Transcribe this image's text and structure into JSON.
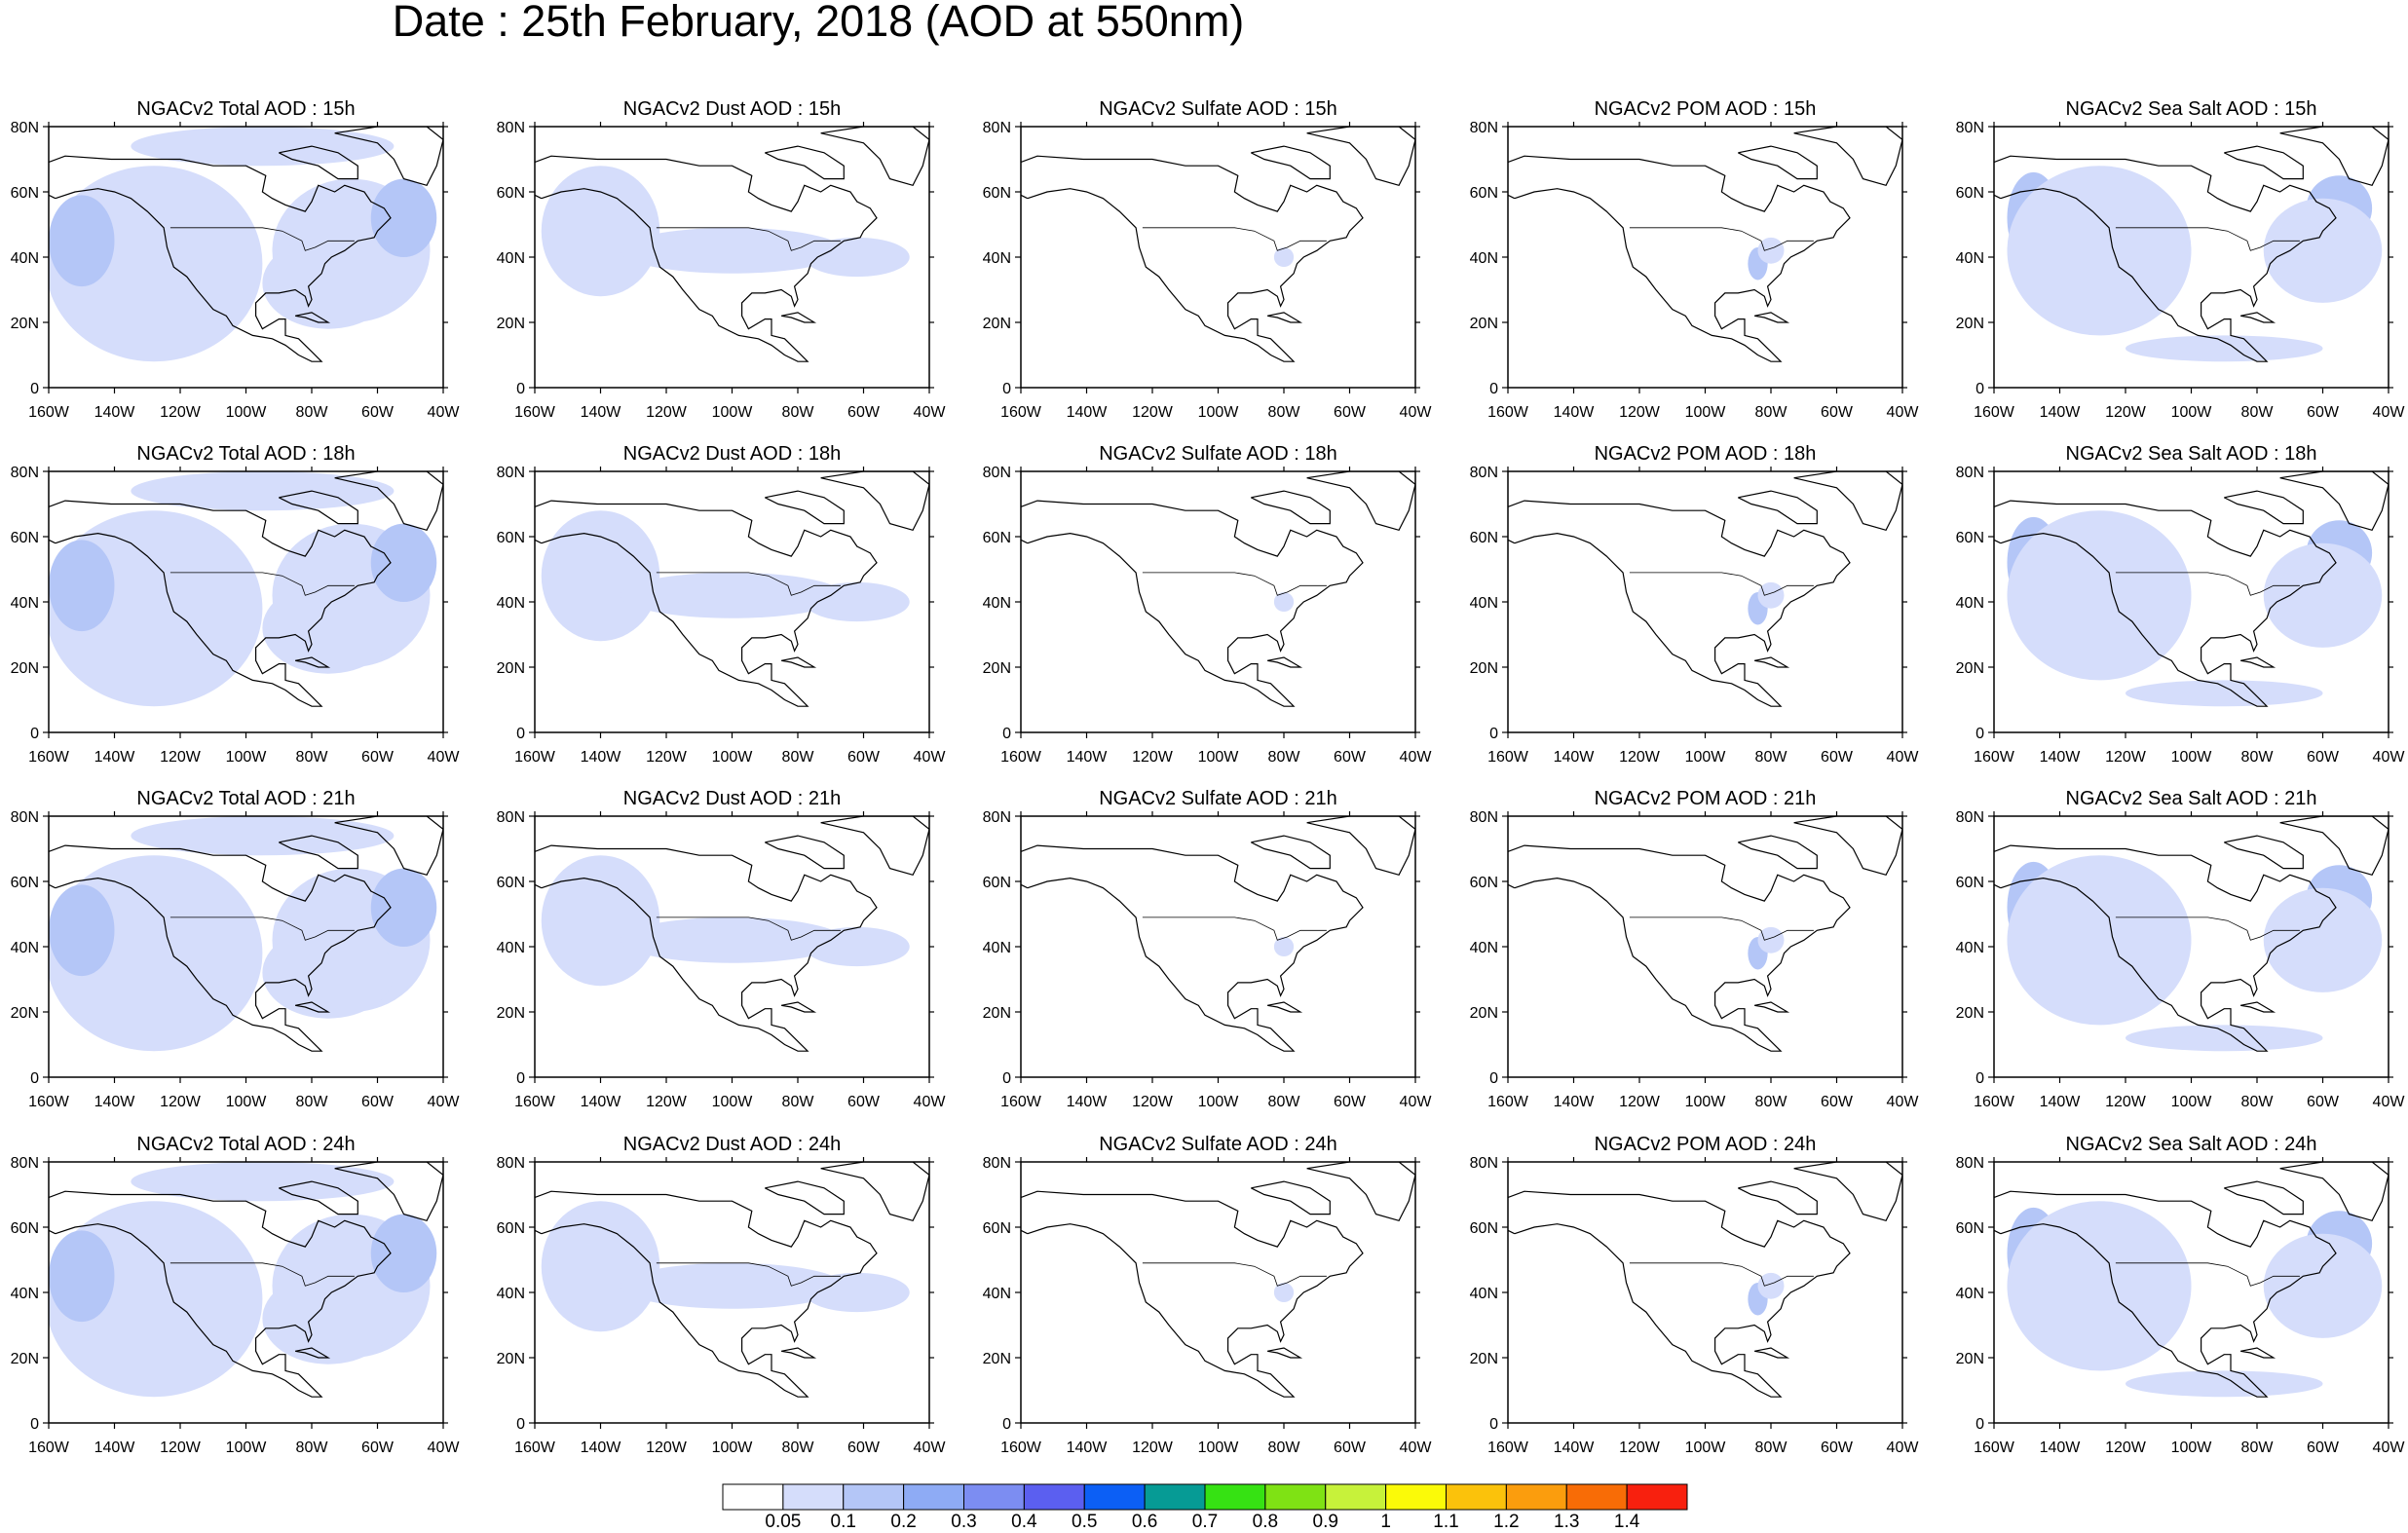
{
  "figure": {
    "title": "Date : 25th February, 2018 (AOD at 550nm)"
  },
  "panels": [
    {
      "title": "NGACv2 Total AOD : 15h",
      "field": "total",
      "hour": "15h"
    },
    {
      "title": "NGACv2 Dust AOD : 15h",
      "field": "dust",
      "hour": "15h"
    },
    {
      "title": "NGACv2 Sulfate AOD : 15h",
      "field": "sulfate",
      "hour": "15h"
    },
    {
      "title": "NGACv2 POM AOD : 15h",
      "field": "pom",
      "hour": "15h"
    },
    {
      "title": "NGACv2 Sea Salt AOD : 15h",
      "field": "seasalt",
      "hour": "15h"
    },
    {
      "title": "NGACv2 Total AOD : 18h",
      "field": "total",
      "hour": "18h"
    },
    {
      "title": "NGACv2 Dust AOD : 18h",
      "field": "dust",
      "hour": "18h"
    },
    {
      "title": "NGACv2 Sulfate AOD : 18h",
      "field": "sulfate",
      "hour": "18h"
    },
    {
      "title": "NGACv2 POM AOD : 18h",
      "field": "pom",
      "hour": "18h"
    },
    {
      "title": "NGACv2 Sea Salt AOD : 18h",
      "field": "seasalt",
      "hour": "18h"
    },
    {
      "title": "NGACv2 Total AOD : 21h",
      "field": "total",
      "hour": "21h"
    },
    {
      "title": "NGACv2 Dust AOD : 21h",
      "field": "dust",
      "hour": "21h"
    },
    {
      "title": "NGACv2 Sulfate AOD : 21h",
      "field": "sulfate",
      "hour": "21h"
    },
    {
      "title": "NGACv2 POM AOD : 21h",
      "field": "pom",
      "hour": "21h"
    },
    {
      "title": "NGACv2 Sea Salt AOD : 21h",
      "field": "seasalt",
      "hour": "21h"
    },
    {
      "title": "NGACv2 Total AOD : 24h",
      "field": "total",
      "hour": "24h"
    },
    {
      "title": "NGACv2 Dust AOD : 24h",
      "field": "dust",
      "hour": "24h"
    },
    {
      "title": "NGACv2 Sulfate AOD : 24h",
      "field": "sulfate",
      "hour": "24h"
    },
    {
      "title": "NGACv2 POM AOD : 24h",
      "field": "pom",
      "hour": "24h"
    },
    {
      "title": "NGACv2 Sea Salt  AOD : 24h",
      "field": "seasalt",
      "hour": "24h"
    }
  ],
  "axes": {
    "lon_ticks": [
      "160W",
      "140W",
      "120W",
      "100W",
      "80W",
      "60W",
      "40W"
    ],
    "lon_values": [
      -160,
      -140,
      -120,
      -100,
      -80,
      -60,
      -40
    ],
    "lat_ticks": [
      "0",
      "20N",
      "40N",
      "60N",
      "80N"
    ],
    "lat_values": [
      0,
      20,
      40,
      60,
      80
    ]
  },
  "colorbar": {
    "labels": [
      "0.05",
      "0.1",
      "0.2",
      "0.3",
      "0.4",
      "0.5",
      "0.6",
      "0.7",
      "0.8",
      "0.9",
      "1",
      "1.1",
      "1.2",
      "1.3",
      "1.4"
    ],
    "colors": [
      "#ffffff",
      "#d5ddfb",
      "#b4c6f7",
      "#8eabf5",
      "#7c8df2",
      "#5b5ff0",
      "#0c5ff5",
      "#069b95",
      "#36e213",
      "#7fe214",
      "#c7f23a",
      "#fbfa08",
      "#fbc20b",
      "#fb9d0d",
      "#f86c06",
      "#f8200e"
    ]
  }
}
